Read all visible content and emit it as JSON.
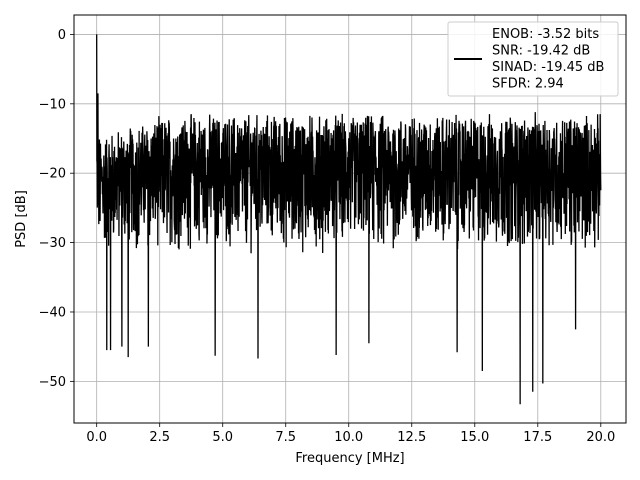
{
  "chart_data": {
    "type": "line",
    "xlabel": "Frequency [MHz]",
    "ylabel": "PSD [dB]",
    "xlim": [
      -0.9,
      21.0
    ],
    "ylim": [
      -56.0,
      2.8
    ],
    "xticks": [
      0.0,
      2.5,
      5.0,
      7.5,
      10.0,
      12.5,
      15.0,
      17.5,
      20.0
    ],
    "xtick_labels": [
      "0.0",
      "2.5",
      "5.0",
      "7.5",
      "10.0",
      "12.5",
      "15.0",
      "17.5",
      "20.0"
    ],
    "yticks": [
      0,
      -10,
      -20,
      -30,
      -40,
      -50
    ],
    "ytick_labels": [
      "0",
      "−10",
      "−20",
      "−30",
      "−40",
      "−50"
    ],
    "grid": true,
    "legend_position": "top-right",
    "legend_lines": [
      "ENOB: -3.52 bits",
      "SNR: -19.42 dB",
      "SINAD: -19.45 dB",
      "SFDR: 2.94"
    ],
    "series_color": "#000000",
    "x_range": [
      0.0,
      20.0
    ],
    "peak": {
      "x": 0.0,
      "y": 0.0
    },
    "noise_band_low_edge_dB": -30.5,
    "noise_band_high_edge_dB": -12.5,
    "spikes": [
      {
        "x": 0.05,
        "y": -8.5
      },
      {
        "x": 0.4,
        "y": -45.5
      },
      {
        "x": 0.55,
        "y": -45.5
      },
      {
        "x": 1.0,
        "y": -45.0
      },
      {
        "x": 1.25,
        "y": -46.5
      },
      {
        "x": 2.05,
        "y": -45.0
      },
      {
        "x": 4.7,
        "y": -46.3
      },
      {
        "x": 6.4,
        "y": -46.7
      },
      {
        "x": 9.5,
        "y": -46.2
      },
      {
        "x": 10.8,
        "y": -44.5
      },
      {
        "x": 14.3,
        "y": -45.8
      },
      {
        "x": 15.3,
        "y": -48.5
      },
      {
        "x": 16.8,
        "y": -53.3
      },
      {
        "x": 17.3,
        "y": -51.5
      },
      {
        "x": 17.7,
        "y": -50.3
      },
      {
        "x": 19.0,
        "y": -42.5
      }
    ]
  }
}
